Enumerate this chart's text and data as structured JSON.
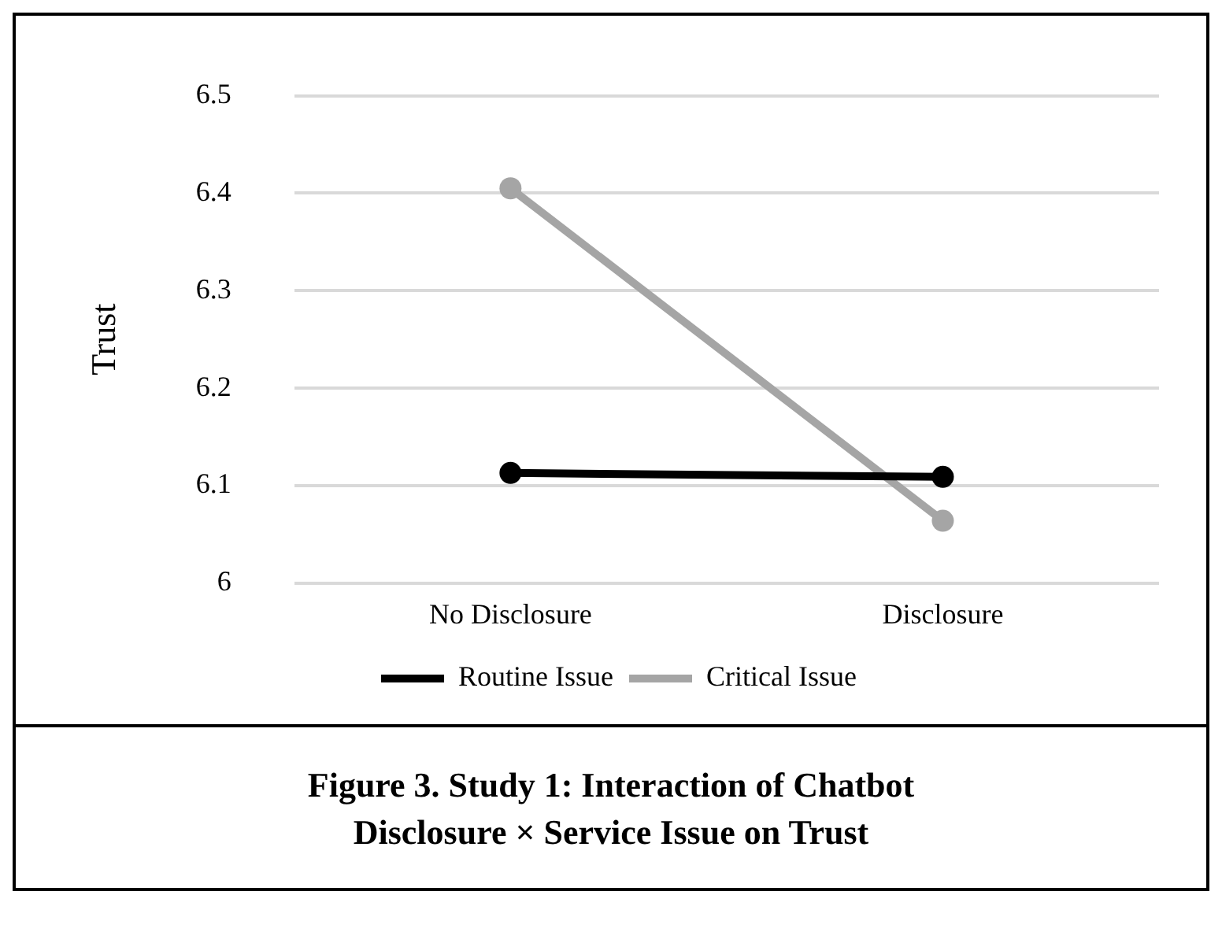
{
  "chart_data": {
    "type": "line",
    "title": "Figure 3. Study 1: Interaction of Chatbot Disclosure × Service Issue on Trust",
    "ylabel": "Trust",
    "categories": [
      "No Disclosure",
      "Disclosure"
    ],
    "series": [
      {
        "name": "Routine Issue",
        "color": "#000000",
        "values": [
          6.113,
          6.109
        ]
      },
      {
        "name": "Critical Issue",
        "color": "#a5a5a5",
        "values": [
          6.405,
          6.064
        ]
      }
    ],
    "ylim": [
      6,
      6.5
    ],
    "yticks": [
      {
        "value": 6,
        "label": "6"
      },
      6.1,
      6.2,
      6.3,
      6.4,
      6.5
    ],
    "grid": "y",
    "legend": "bottom",
    "marker": "circle",
    "line_style": "solid"
  }
}
